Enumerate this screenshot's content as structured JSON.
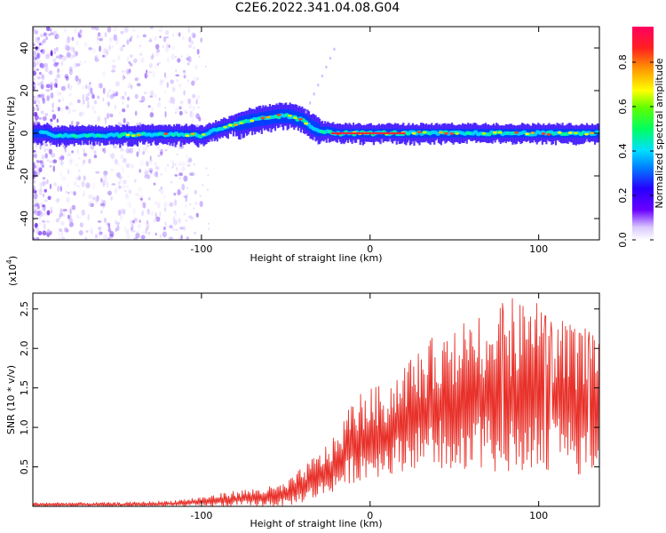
{
  "title": "C2E6.2022.341.04.08.G04",
  "chart_data": [
    {
      "type": "heatmap",
      "xlabel": "Height of straight line (km)",
      "ylabel": "Frequency (Hz)",
      "xlim": [
        -200,
        136
      ],
      "ylim": [
        -50,
        50
      ],
      "xticks": [
        -100,
        0,
        100
      ],
      "yticks": [
        -40,
        -20,
        0,
        20,
        40
      ],
      "colorbar": {
        "label": "Normalized spectral amplitude",
        "range": [
          0.0,
          0.96
        ],
        "ticks": [
          0.0,
          0.2,
          0.4,
          0.6,
          0.8
        ],
        "tick_labels": [
          "0.0",
          "0.2",
          "0.4",
          "0.6",
          "0.8"
        ]
      },
      "signal_ridge": {
        "x": [
          -190,
          -160,
          -130,
          -110,
          -100,
          -90,
          -80,
          -70,
          -62,
          -55,
          -48,
          -40,
          -35,
          -30,
          -25,
          -20,
          0,
          50,
          100,
          136
        ],
        "freq_hz": [
          -1,
          -1,
          -0.5,
          -0.5,
          -1,
          2,
          4,
          6,
          7,
          8,
          8,
          6,
          3,
          1,
          1,
          0,
          0,
          0,
          0,
          0
        ]
      }
    },
    {
      "type": "line",
      "xlabel": "Height of straight line (km)",
      "ylabel": "SNR (10 * v/v)",
      "y_scale_label": "(x10",
      "y_scale_exp": "4",
      "y_scale_close": ")",
      "xlim": [
        -200,
        136
      ],
      "ylim": [
        0,
        27000
      ],
      "xticks": [
        -100,
        0,
        100
      ],
      "yticks": [
        5000,
        10000,
        15000,
        20000,
        25000
      ],
      "ytick_labels": [
        "0.5",
        "1.0",
        "1.5",
        "2.0",
        "2.5"
      ],
      "series": [
        {
          "color": "#e8312a",
          "envelope_x": [
            -200,
            -150,
            -120,
            -100,
            -80,
            -60,
            -50,
            -40,
            -30,
            -20,
            -10,
            0,
            10,
            20,
            30,
            40,
            50,
            60,
            70,
            80,
            90,
            100,
            110,
            120,
            136
          ],
          "envelope_max": [
            500,
            500,
            700,
            1200,
            2000,
            2500,
            3000,
            5000,
            7000,
            9000,
            14000,
            15000,
            15500,
            18500,
            20000,
            22000,
            24000,
            24500,
            24500,
            27000,
            25500,
            26000,
            24000,
            23000,
            22000
          ],
          "envelope_min": [
            0,
            0,
            0,
            0,
            0,
            0,
            0,
            500,
            1000,
            2000,
            3000,
            3500,
            4000,
            4500,
            5000,
            5000,
            4500,
            4500,
            4500,
            4000,
            4000,
            4500,
            4500,
            4000,
            4000
          ]
        }
      ]
    }
  ]
}
